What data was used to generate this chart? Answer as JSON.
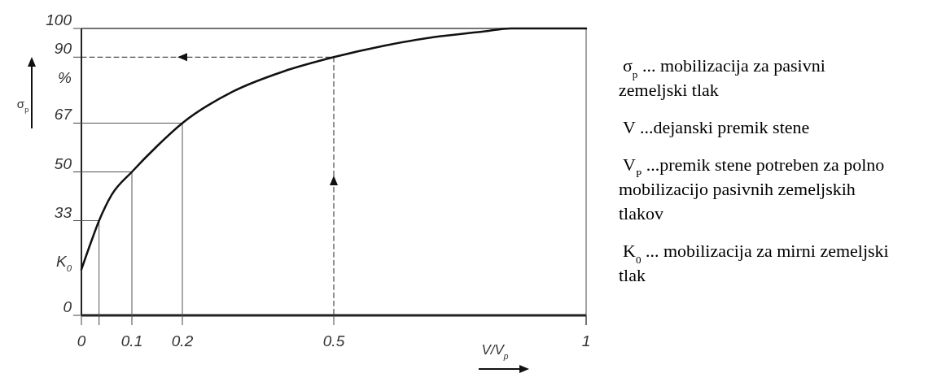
{
  "chart_data": {
    "type": "line",
    "xlabel": "V/V$_{p}$",
    "ylabel": "σ$_{p}$",
    "xlim": [
      0,
      1
    ],
    "ylim": [
      0,
      100
    ],
    "xticks": [
      0,
      {
        "value": 0.035,
        "label": null
      },
      0.1,
      0.2,
      0.5,
      1
    ],
    "yticks": [
      0,
      33,
      50,
      67,
      90,
      100
    ],
    "grid": false,
    "marker": "none",
    "series": [
      {
        "color": "#111111",
        "x": [
          0,
          0.02,
          0.035,
          0.06,
          0.1,
          0.15,
          0.2,
          0.3,
          0.4,
          0.5,
          0.6,
          0.7,
          0.8,
          0.85,
          1
        ],
        "values": [
          16,
          26,
          33,
          42,
          50,
          59,
          67,
          78,
          85,
          90,
          94,
          97,
          99,
          100,
          100
        ]
      },
      {
        "color": "#555555",
        "line_style": "solid",
        "x": [
          0,
          0.035,
          0.035
        ],
        "values": [
          33,
          33,
          0
        ]
      },
      {
        "color": "#555555",
        "line_style": "solid",
        "x": [
          0,
          0.1,
          0.1
        ],
        "values": [
          50,
          50,
          0
        ]
      },
      {
        "color": "#555555",
        "line_style": "solid",
        "x": [
          0,
          0.2,
          0.2
        ],
        "values": [
          67,
          67,
          0
        ]
      },
      {
        "color": "#222222",
        "line_style": "dashed",
        "x": [
          0,
          0.5,
          0.5
        ],
        "values": [
          90,
          90,
          0
        ]
      }
    ],
    "annotations": [
      "%",
      {
        "text": "K$_{0}$",
        "x": 0,
        "y": 16
      },
      "σ$_{p}$ ... mobilizacija za pasivni zemeljski tlak",
      "V ...dejanski premik stene",
      "V$_{P}$ ...premik stene potreben za polno mobilizacijo pasivnih zemeljskih tlakov",
      "K$_{0}$ ... mobilizacija za  mirni zemeljski tlak"
    ]
  }
}
